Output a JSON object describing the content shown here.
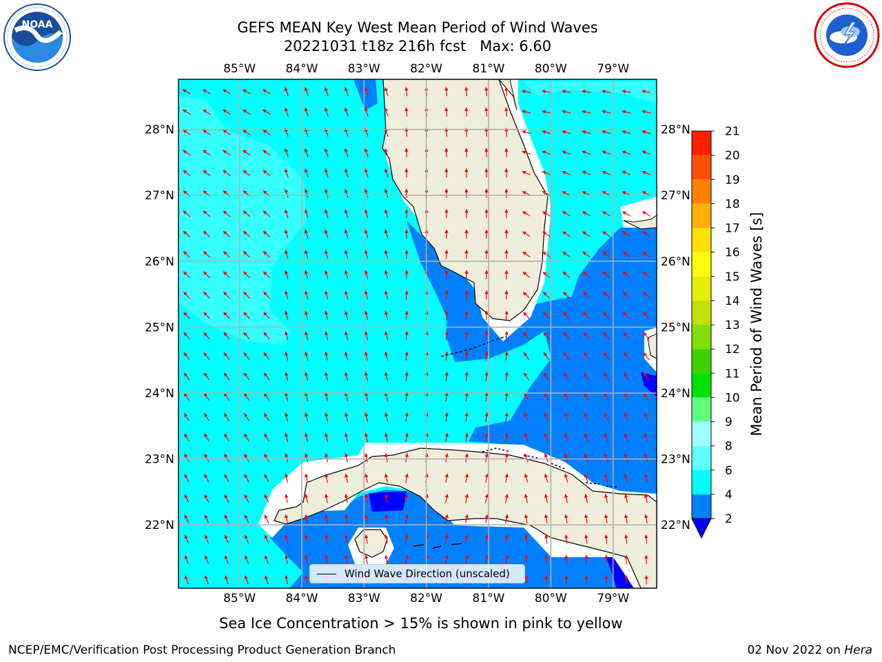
{
  "title": {
    "line1": "GEFS MEAN Key West Mean Period of Wind Waves",
    "line2": "20221031 t18z 216h fcst   Max: 6.60"
  },
  "logos": {
    "left": {
      "name": "noaa-logo",
      "text": "NOAA",
      "ring_text": "NATIONAL OCEANIC AND ATMOSPHERIC ADMINISTRATION · U.S. DEPARTMENT OF COMMERCE"
    },
    "right": {
      "name": "nws-logo",
      "ring_text": "NATIONAL WEATHER SERVICE"
    }
  },
  "map": {
    "lon_labels": [
      "85°W",
      "84°W",
      "83°W",
      "82°W",
      "81°W",
      "80°W",
      "79°W"
    ],
    "lat_labels": [
      "28°N",
      "27°N",
      "26°N",
      "25°N",
      "24°N",
      "23°N",
      "22°N"
    ],
    "lon_values": [
      -85,
      -84,
      -83,
      -82,
      -81,
      -80,
      -79
    ],
    "lat_values": [
      28,
      27,
      26,
      25,
      24,
      23,
      22
    ],
    "extent": {
      "lon_min": -85.98,
      "lon_max": -78.3,
      "lat_min": 21.04,
      "lat_max": 28.76
    },
    "colors": {
      "land": "#efeddb",
      "coast": "#000000",
      "grid": "#b0b0b0",
      "arrow": "#ff0000",
      "band_2_4": "#0080ff",
      "band_4_6": "#00ffff",
      "band_6_8": "#60ffff",
      "below_2": "#0000ff",
      "ice_mask": "#ffffff"
    }
  },
  "colorbar": {
    "label": "Mean Period of Wind Waves [s]",
    "ticks": [
      "2",
      "4",
      "6",
      "8",
      "9",
      "10",
      "11",
      "12",
      "13",
      "14",
      "15",
      "16",
      "17",
      "18",
      "19",
      "20",
      "21"
    ],
    "colors": [
      "#0080ff",
      "#00ffff",
      "#60ffff",
      "#a0ffff",
      "#60ff80",
      "#00e000",
      "#40d000",
      "#80e000",
      "#c0e000",
      "#e0f000",
      "#ffff00",
      "#ffe000",
      "#ffb000",
      "#ff8000",
      "#ff5000",
      "#ff2000"
    ],
    "extend_low_color": "#0000ff"
  },
  "legend": {
    "label": "Wind Wave Direction (unscaled)"
  },
  "subtitle": "Sea Ice Concentration > 15% is shown in pink to yellow",
  "footer": {
    "left": "NCEP/EMC/Verification Post Processing Product Generation Branch",
    "date": "02 Nov 2022 on ",
    "host": "Hera"
  }
}
